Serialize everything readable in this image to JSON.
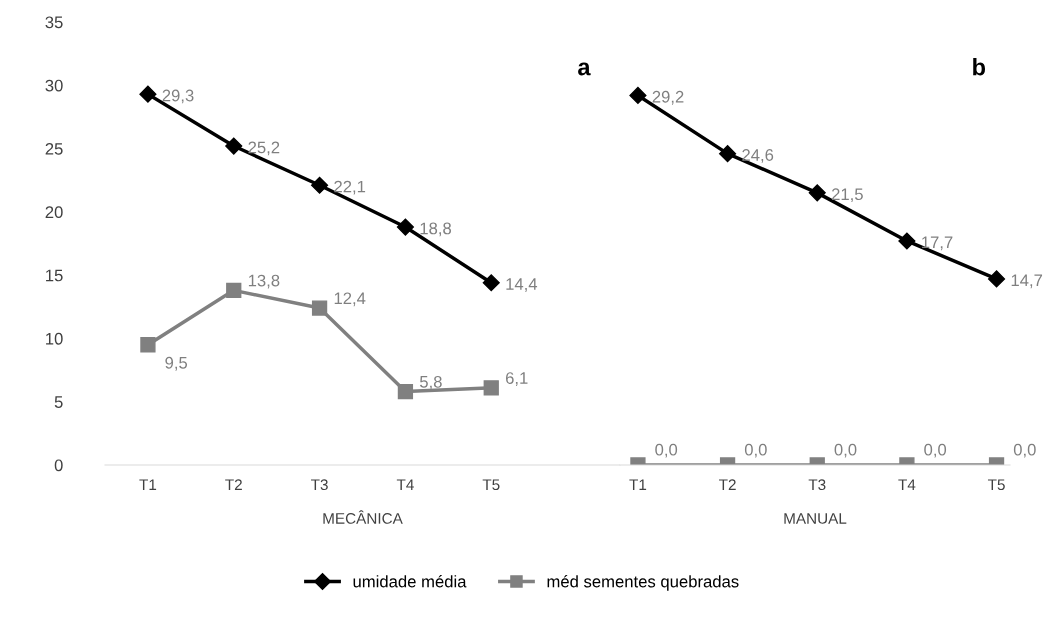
{
  "chart_data": [
    {
      "type": "line",
      "xlabel": "MECÂNICA",
      "annotations": [
        "a"
      ],
      "categories": [
        "T1",
        "T2",
        "T3",
        "T4",
        "T5"
      ],
      "ylim": [
        0,
        35
      ],
      "yticks": [
        0,
        5,
        10,
        15,
        20,
        25,
        30,
        35
      ],
      "grid": false,
      "legend": "bottom",
      "series": [
        {
          "name": "umidade média",
          "color": "#000000",
          "marker": "diamond",
          "values": [
            29.3,
            25.2,
            22.1,
            18.8,
            14.4
          ],
          "value_labels": [
            "29,3",
            "25,2",
            "22,1",
            "18,8",
            "14,4"
          ]
        },
        {
          "name": "méd sementes quebradas",
          "color": "#808080",
          "marker": "square",
          "values": [
            9.5,
            13.8,
            12.4,
            5.8,
            6.1
          ],
          "value_labels": [
            "9,5",
            "13,8",
            "12,4",
            "5,8",
            "6,1"
          ]
        }
      ]
    },
    {
      "type": "line",
      "xlabel": "MANUAL",
      "annotations": [
        "b"
      ],
      "categories": [
        "T1",
        "T2",
        "T3",
        "T4",
        "T5"
      ],
      "ylim": [
        0,
        35
      ],
      "yticks": [
        0,
        5,
        10,
        15,
        20,
        25,
        30,
        35
      ],
      "grid": false,
      "tick_labels": "x",
      "series": [
        {
          "name": "umidade média",
          "color": "#000000",
          "marker": "diamond",
          "values": [
            29.2,
            24.6,
            21.5,
            17.7,
            14.7
          ],
          "value_labels": [
            "29,2",
            "24,6",
            "21,5",
            "17,7",
            "14,7"
          ]
        },
        {
          "name": "méd sementes quebradas",
          "color": "#808080",
          "marker": "square",
          "values": [
            0.0,
            0.0,
            0.0,
            0.0,
            0.0
          ],
          "value_labels": [
            "0,0",
            "0,0",
            "0,0",
            "0,0",
            "0,0"
          ]
        }
      ]
    }
  ]
}
